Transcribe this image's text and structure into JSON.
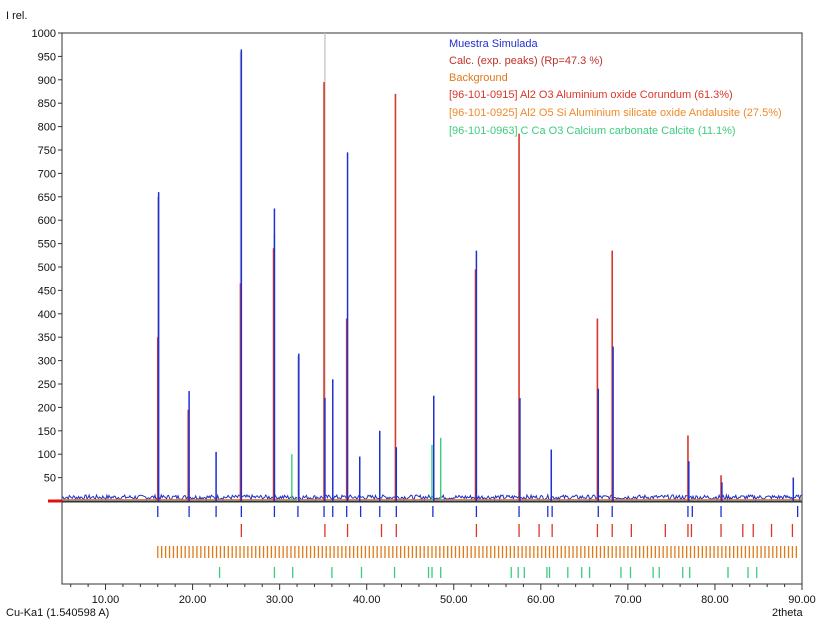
{
  "chart_data": {
    "type": "line",
    "ylabel": "I rel.",
    "xlabel": "2theta",
    "wavelength_label": "Cu-Ka1 (1.540598 A)",
    "xlim": [
      5,
      90
    ],
    "ylim": [
      0,
      1000
    ],
    "x_ticks": [
      "10.00",
      "20.00",
      "30.00",
      "40.00",
      "50.00",
      "60.00",
      "70.00",
      "80.00",
      "90.00"
    ],
    "y_ticks": [
      "50",
      "100",
      "150",
      "200",
      "250",
      "300",
      "350",
      "400",
      "450",
      "500",
      "550",
      "600",
      "650",
      "700",
      "750",
      "800",
      "850",
      "900",
      "950",
      "1000"
    ],
    "legend": [
      {
        "text": "Muestra Simulada",
        "color": "#1f2fd0"
      },
      {
        "text": "Calc. (exp. peaks) (Rp=47.3 %)",
        "color": "#c0302a"
      },
      {
        "text": "Background",
        "color": "#e07a18"
      },
      {
        "text": "[96-101-0915] Al2 O3 Aluminium oxide Corundum (61.3%)",
        "color": "#d8372a"
      },
      {
        "text": "[96-101-0925] Al2 O5 Si Aluminium silicate oxide Andalusite (27.5%)",
        "color": "#ee8a2a"
      },
      {
        "text": "[96-101-0963] C Ca O3 Calcium carbonate Calcite (11.1%)",
        "color": "#3ccc7e"
      }
    ],
    "background_level": 3,
    "colors": {
      "measured": "#1f2fd0",
      "calc": "#d8372a",
      "corundum": "#d8372a",
      "andalusite": "#e07a18",
      "calcite": "#3ccc7e",
      "gray": "#c8c8c8"
    },
    "measured_peaks": [
      {
        "x": 16.1,
        "y": 660
      },
      {
        "x": 19.6,
        "y": 235
      },
      {
        "x": 22.7,
        "y": 105
      },
      {
        "x": 25.6,
        "y": 965
      },
      {
        "x": 29.4,
        "y": 625
      },
      {
        "x": 32.2,
        "y": 315
      },
      {
        "x": 35.2,
        "y": 220
      },
      {
        "x": 36.1,
        "y": 260
      },
      {
        "x": 37.8,
        "y": 745
      },
      {
        "x": 39.2,
        "y": 95
      },
      {
        "x": 41.5,
        "y": 150
      },
      {
        "x": 43.4,
        "y": 115
      },
      {
        "x": 47.7,
        "y": 225
      },
      {
        "x": 52.6,
        "y": 535
      },
      {
        "x": 57.6,
        "y": 220
      },
      {
        "x": 61.2,
        "y": 110
      },
      {
        "x": 66.6,
        "y": 240
      },
      {
        "x": 68.3,
        "y": 330
      },
      {
        "x": 77.0,
        "y": 85
      },
      {
        "x": 80.8,
        "y": 40
      },
      {
        "x": 89.0,
        "y": 50
      }
    ],
    "calc_peaks": [
      {
        "x": 16.0,
        "y": 350
      },
      {
        "x": 19.5,
        "y": 195
      },
      {
        "x": 25.5,
        "y": 465
      },
      {
        "x": 29.3,
        "y": 540
      },
      {
        "x": 35.1,
        "y": 895
      },
      {
        "x": 37.7,
        "y": 390
      },
      {
        "x": 43.3,
        "y": 870
      },
      {
        "x": 52.5,
        "y": 495
      },
      {
        "x": 57.5,
        "y": 785
      },
      {
        "x": 66.5,
        "y": 390
      },
      {
        "x": 68.2,
        "y": 535
      },
      {
        "x": 76.9,
        "y": 140
      },
      {
        "x": 80.7,
        "y": 55
      }
    ],
    "gray_peaks": [
      {
        "x": 16.0,
        "y": 650
      },
      {
        "x": 25.5,
        "y": 960
      },
      {
        "x": 32.1,
        "y": 310
      },
      {
        "x": 35.2,
        "y": 1000
      }
    ],
    "calcite_peaks": [
      {
        "x": 29.4,
        "y": 570
      },
      {
        "x": 31.4,
        "y": 100
      },
      {
        "x": 48.5,
        "y": 135
      },
      {
        "x": 47.5,
        "y": 120
      }
    ],
    "ticks_corundum": [
      25.6,
      35.2,
      37.8,
      41.7,
      43.4,
      52.6,
      57.5,
      59.8,
      61.3,
      66.5,
      68.2,
      70.4,
      74.3,
      76.9,
      77.3,
      80.7,
      83.2,
      84.4,
      86.5,
      88.9
    ],
    "ticks_measured": [
      16.0,
      19.6,
      22.7,
      25.6,
      29.4,
      32.1,
      35.1,
      36.1,
      37.7,
      39.3,
      41.5,
      43.4,
      47.6,
      52.6,
      57.5,
      60.8,
      61.3,
      66.6,
      68.2,
      76.9,
      77.4,
      80.7,
      89.5
    ],
    "ticks_calcite": [
      23.1,
      29.4,
      31.5,
      36.0,
      39.4,
      43.2,
      47.1,
      47.5,
      48.5,
      56.6,
      57.4,
      58.1,
      60.7,
      61.0,
      63.1,
      64.7,
      65.6,
      69.2,
      70.3,
      72.9,
      73.6,
      76.3,
      77.1,
      81.5,
      83.8,
      84.8
    ]
  }
}
